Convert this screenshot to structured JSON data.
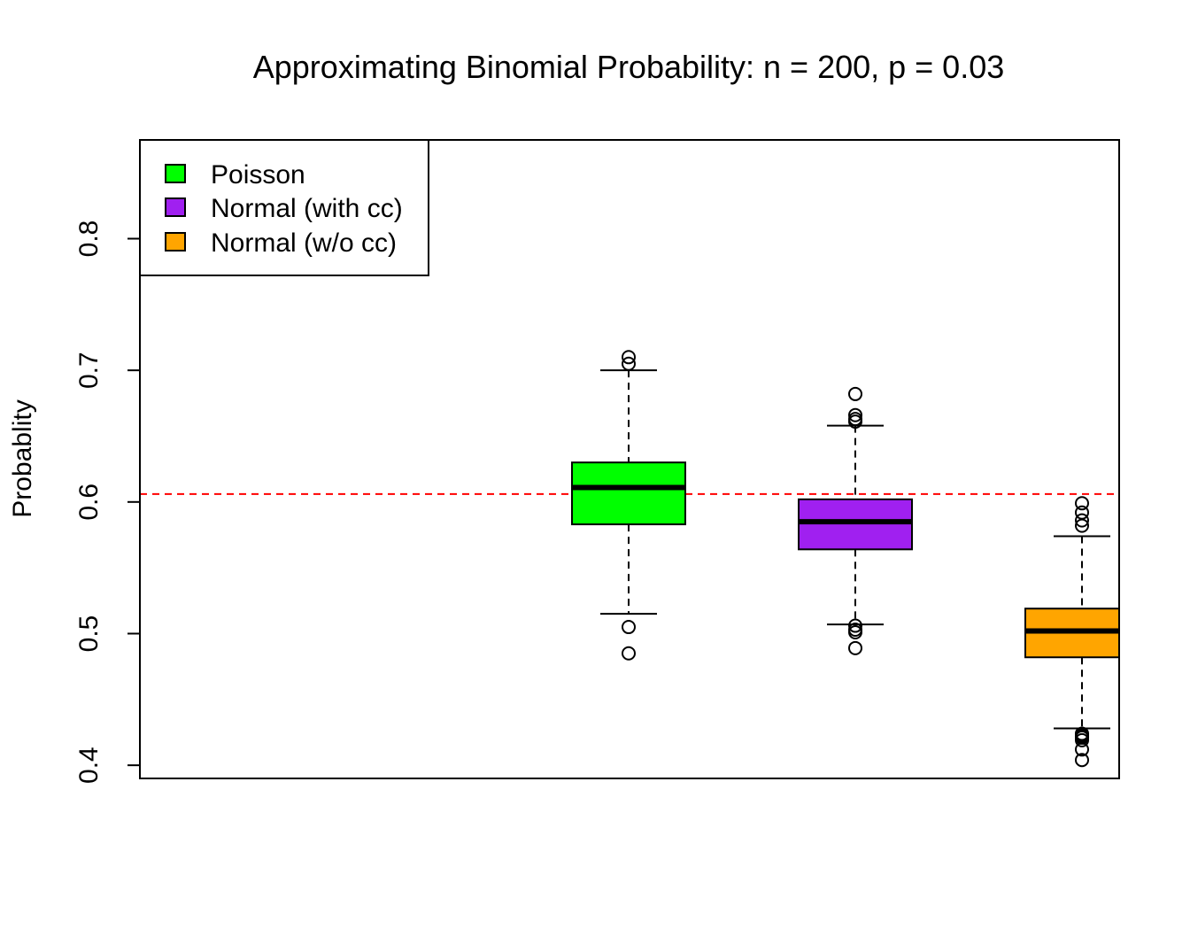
{
  "chart_data": {
    "type": "boxplot",
    "title": "Approximating Binomial Probability:  n = 200, p = 0.03",
    "xlabel": "",
    "ylabel": "Probablity",
    "ylim": [
      0.39,
      0.875
    ],
    "y_ticks": [
      "0.4",
      "0.5",
      "0.6",
      "0.7",
      "0.8"
    ],
    "grid": false,
    "reference_line": {
      "y": 0.606,
      "color": "#ff0000",
      "style": "dashed"
    },
    "legend": {
      "placement": "top-left",
      "entries": [
        {
          "label": "Poisson",
          "color": "#00ff00"
        },
        {
          "label": "Normal (with cc)",
          "color": "#a020f0"
        },
        {
          "label": "Normal (w/o cc)",
          "color": "#ffa500"
        }
      ]
    },
    "series": [
      {
        "name": "Poisson",
        "color": "#00ff00",
        "whisker_low": 0.515,
        "q1": 0.583,
        "median": 0.611,
        "q3": 0.63,
        "whisker_high": 0.7,
        "outliers": [
          0.485,
          0.505,
          0.705,
          0.71
        ]
      },
      {
        "name": "Normal (with cc)",
        "color": "#a020f0",
        "whisker_low": 0.507,
        "q1": 0.564,
        "median": 0.585,
        "q3": 0.602,
        "whisker_high": 0.658,
        "outliers": [
          0.489,
          0.501,
          0.503,
          0.506,
          0.661,
          0.663,
          0.666,
          0.682
        ]
      },
      {
        "name": "Normal (w/o cc)",
        "color": "#ffa500",
        "whisker_low": 0.428,
        "q1": 0.482,
        "median": 0.502,
        "q3": 0.519,
        "whisker_high": 0.574,
        "outliers": [
          0.404,
          0.412,
          0.419,
          0.421,
          0.422,
          0.423,
          0.424,
          0.582,
          0.586,
          0.592,
          0.599
        ]
      }
    ]
  }
}
